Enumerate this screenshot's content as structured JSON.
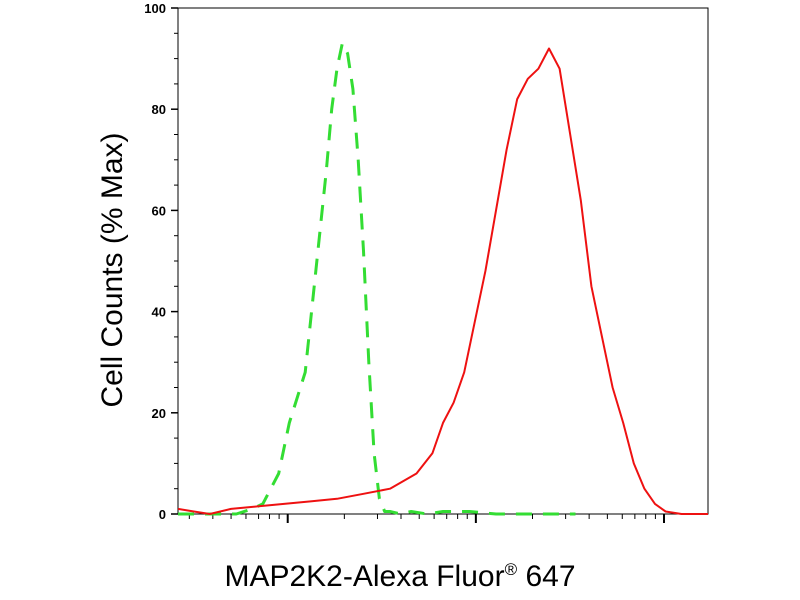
{
  "chart_data": {
    "type": "line",
    "title": "",
    "ylabel": "Cell Counts (% Max)",
    "xlabel": "MAP2K2-Alexa Fluor",
    "xlabel_superscript": "®",
    "xlabel_suffix": "647",
    "xscale": "log",
    "xlim": [
      0,
      1
    ],
    "ylim": [
      0,
      100
    ],
    "y_ticks": [
      "0",
      "20",
      "40",
      "60",
      "80",
      "100"
    ],
    "y_tick_values": [
      0,
      20,
      40,
      60,
      80,
      100
    ],
    "grid": false,
    "colors": {
      "isotype": "#33dd33",
      "sample": "#ee1111"
    },
    "series": [
      {
        "style": "dashed",
        "color": "#33dd33",
        "x": [
          0.0,
          0.04,
          0.08,
          0.11,
          0.14,
          0.16,
          0.19,
          0.21,
          0.24,
          0.26,
          0.28,
          0.29,
          0.3,
          0.31,
          0.32,
          0.33,
          0.34,
          0.35,
          0.36,
          0.37,
          0.38,
          0.39,
          0.4,
          0.42,
          0.44,
          0.47,
          0.5,
          0.55,
          0.6,
          0.65,
          0.7,
          0.75
        ],
        "y": [
          0,
          0,
          0,
          0,
          1,
          2,
          8,
          18,
          28,
          48,
          68,
          80,
          88,
          93,
          91,
          84,
          70,
          52,
          30,
          12,
          3,
          0.5,
          0.5,
          0,
          0.5,
          0,
          0.5,
          0.5,
          0,
          0,
          0,
          0
        ]
      },
      {
        "style": "solid",
        "color": "#ee1111",
        "x": [
          0.0,
          0.03,
          0.06,
          0.1,
          0.15,
          0.2,
          0.25,
          0.3,
          0.35,
          0.4,
          0.45,
          0.48,
          0.5,
          0.52,
          0.54,
          0.56,
          0.58,
          0.6,
          0.62,
          0.64,
          0.66,
          0.68,
          0.7,
          0.72,
          0.74,
          0.76,
          0.78,
          0.8,
          0.82,
          0.84,
          0.86,
          0.88,
          0.9,
          0.92,
          0.95,
          1.0
        ],
        "y": [
          1,
          0.5,
          0,
          1,
          1.5,
          2,
          2.5,
          3,
          4,
          5,
          8,
          12,
          18,
          22,
          28,
          38,
          48,
          60,
          72,
          82,
          86,
          88,
          92,
          88,
          75,
          62,
          45,
          35,
          25,
          18,
          10,
          5,
          2,
          0.5,
          0,
          0
        ]
      }
    ]
  }
}
